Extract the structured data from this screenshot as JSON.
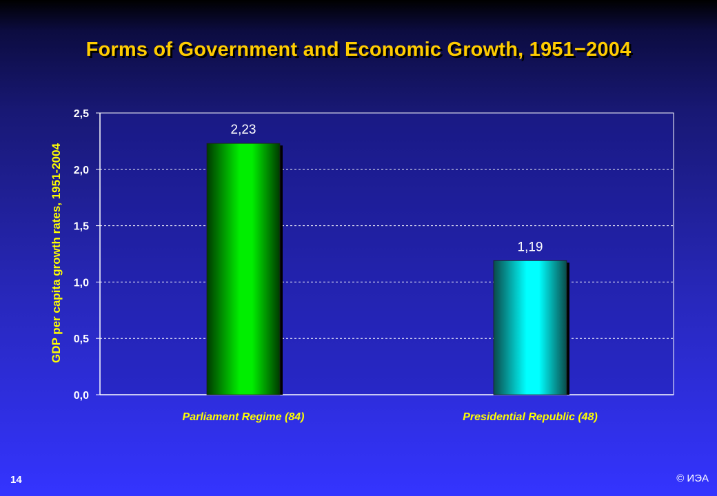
{
  "slide": {
    "title": "Forms of Government and Economic Growth, 1951−2004",
    "page_number": "14",
    "copyright": "© ИЭА"
  },
  "colors": {
    "title": "#ffcc00",
    "series_parliament": "#00ee00",
    "series_presidential": "#00ffff"
  },
  "chart_data": {
    "type": "bar",
    "title": "",
    "ylabel": "GDP per capita growth rates, 1951-2004",
    "xlabel": "",
    "categories": [
      "Parliament Regime (84)",
      "Presidential Republic (48)"
    ],
    "values": [
      2.23,
      1.19
    ],
    "value_labels": [
      "2,23",
      "1,19"
    ],
    "ylim": [
      0,
      2.5
    ],
    "yticks": [
      0,
      0.5,
      1.0,
      1.5,
      2.0,
      2.5
    ],
    "ytick_labels": [
      "0,0",
      "0,5",
      "1,0",
      "1,5",
      "2,0",
      "2,5"
    ],
    "grid": "dashed horizontal",
    "legend": "none"
  }
}
